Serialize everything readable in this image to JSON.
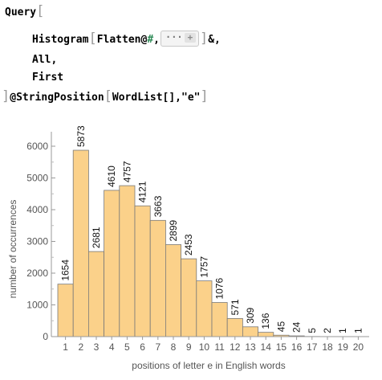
{
  "code": {
    "line1_keyword": "Query",
    "line2_func": "Histogram",
    "line2_arg": "Flatten@",
    "line2_slot": "#",
    "line2_comma": ",",
    "line2_placeholder_dots": "···",
    "line2_placeholder_plus": "+",
    "line2_tail": "&,",
    "line3": "All,",
    "line4": "First",
    "line5_prefix": "@StringPosition",
    "line5_args": "WordList[],\"e\""
  },
  "chart_data": {
    "type": "bar",
    "categories": [
      "1",
      "2",
      "3",
      "4",
      "5",
      "6",
      "7",
      "8",
      "9",
      "10",
      "11",
      "12",
      "13",
      "14",
      "15",
      "16",
      "17",
      "18",
      "19",
      "20"
    ],
    "values": [
      1654,
      5873,
      2681,
      4610,
      4757,
      4121,
      3663,
      2899,
      2453,
      1757,
      1076,
      571,
      309,
      136,
      45,
      24,
      5,
      2,
      1,
      1
    ],
    "xlabel": "positions of letter e in English words",
    "ylabel": "number of occurrences",
    "ylim": [
      0,
      6000
    ],
    "yticks": [
      "0",
      "1000",
      "2000",
      "3000",
      "4000",
      "5000",
      "6000"
    ],
    "bar_color": "#fbd18a",
    "bar_edge": "#7a7a7a",
    "grid": false
  }
}
